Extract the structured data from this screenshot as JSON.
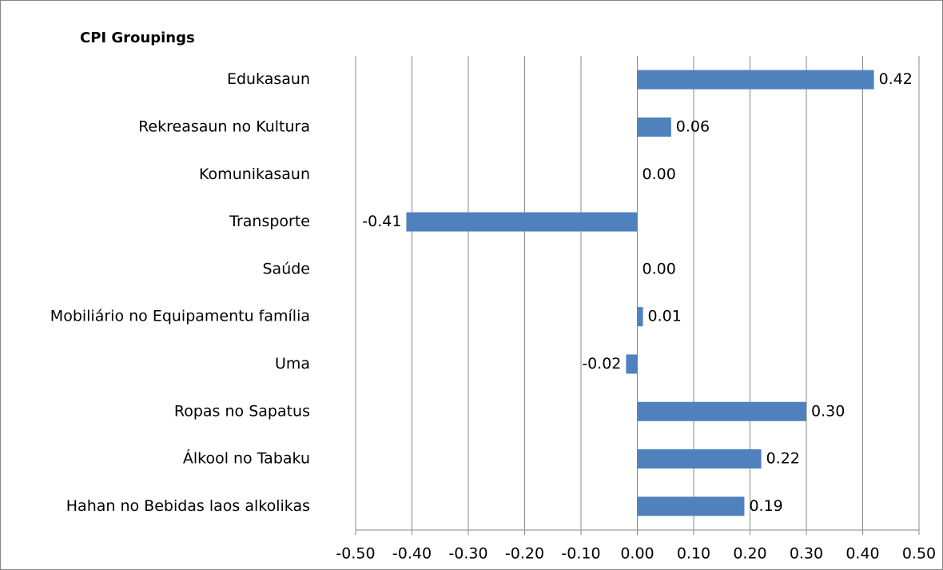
{
  "chart_data": {
    "type": "bar",
    "orientation": "horizontal",
    "title": "CPI Groupings",
    "categories": [
      "Edukasaun",
      "Rekreasaun no Kultura",
      "Komunikasaun",
      "Transporte",
      "Saúde",
      "Mobiliário no Equipamentu família",
      "Uma",
      "Ropas no Sapatus",
      "Álkool no Tabaku",
      "Hahan no  Bebidas laos alkolikas"
    ],
    "values": [
      0.42,
      0.06,
      0.0,
      -0.41,
      0.0,
      0.01,
      -0.02,
      0.3,
      0.22,
      0.19
    ],
    "value_labels": [
      "0.42",
      "0.06",
      "0.00",
      "-0.41",
      "0.00",
      "0.01",
      "-0.02",
      "0.30",
      "0.22",
      "0.19"
    ],
    "color": "#4f81bd",
    "xlim": [
      -0.5,
      0.5
    ],
    "xticks": [
      {
        "value": -0.5,
        "label": "-0.50"
      },
      {
        "value": -0.4,
        "label": "-0.40"
      },
      {
        "value": -0.3,
        "label": "-0.30"
      },
      {
        "value": -0.2,
        "label": "-0.20"
      },
      {
        "value": -0.1,
        "label": "-0.10"
      },
      {
        "value": 0,
        "label": "0.00"
      },
      {
        "value": 0.1,
        "label": "0.10"
      },
      {
        "value": 0.2,
        "label": "0.20"
      },
      {
        "value": 0.3,
        "label": "0.30"
      },
      {
        "value": 0.4,
        "label": "0.40"
      },
      {
        "value": 0.5,
        "label": "0.50"
      }
    ],
    "grid": true
  }
}
